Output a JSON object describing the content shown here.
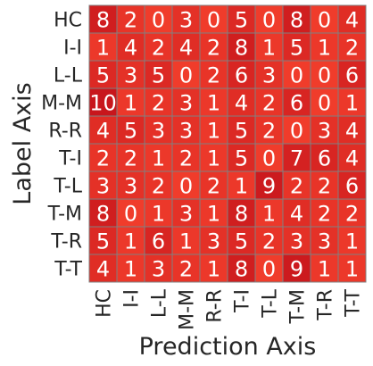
{
  "chart_data": {
    "type": "heatmap",
    "title": "",
    "xlabel": "Prediction Axis",
    "ylabel": "Label Axis",
    "x_categories": [
      "HC",
      "I-I",
      "L-L",
      "M-M",
      "R-R",
      "T-I",
      "T-L",
      "T-M",
      "T-R",
      "T-T"
    ],
    "y_categories": [
      "HC",
      "I-I",
      "L-L",
      "M-M",
      "R-R",
      "T-I",
      "T-L",
      "T-M",
      "T-R",
      "T-T"
    ],
    "values": [
      [
        8,
        2,
        0,
        3,
        0,
        5,
        0,
        8,
        0,
        4
      ],
      [
        1,
        4,
        2,
        4,
        2,
        8,
        1,
        5,
        1,
        2
      ],
      [
        5,
        3,
        5,
        0,
        2,
        6,
        3,
        0,
        0,
        6
      ],
      [
        10,
        1,
        2,
        3,
        1,
        4,
        2,
        6,
        0,
        1
      ],
      [
        4,
        5,
        3,
        3,
        1,
        5,
        2,
        0,
        3,
        4
      ],
      [
        2,
        2,
        1,
        2,
        1,
        5,
        0,
        7,
        6,
        4
      ],
      [
        3,
        3,
        2,
        0,
        2,
        1,
        9,
        2,
        2,
        6
      ],
      [
        8,
        0,
        1,
        3,
        1,
        8,
        1,
        4,
        2,
        2
      ],
      [
        5,
        1,
        6,
        1,
        3,
        5,
        2,
        3,
        3,
        1
      ],
      [
        4,
        1,
        3,
        2,
        1,
        8,
        0,
        9,
        1,
        1
      ]
    ],
    "colors": {
      "low": "#f03c2b",
      "high": "#c8161c",
      "grid": "#808080",
      "text": "#ffffff"
    },
    "colorbar": false,
    "legend": "none"
  }
}
